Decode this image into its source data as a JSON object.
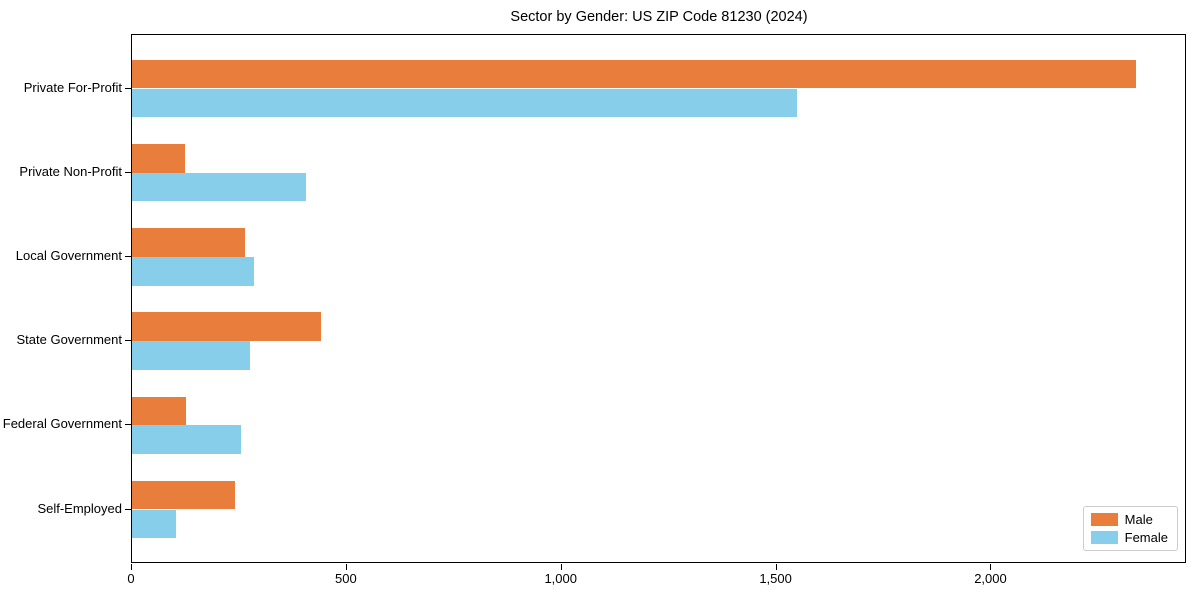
{
  "title": "Sector by Gender: US ZIP Code 81230 (2024)",
  "colors": {
    "male": "#e87d3c",
    "female": "#87ceeb",
    "axis": "#000000",
    "legend_border": "#cccccc",
    "background": "#ffffff"
  },
  "chart_data": {
    "type": "bar",
    "orientation": "horizontal",
    "title": "Sector by Gender: US ZIP Code 81230 (2024)",
    "xlabel": "",
    "ylabel": "",
    "categories": [
      "Private For-Profit",
      "Private Non-Profit",
      "Local Government",
      "State Government",
      "Federal Government",
      "Self-Employed"
    ],
    "series": [
      {
        "name": "Male",
        "color": "#e87d3c",
        "values": [
          2340,
          123,
          264,
          440,
          126,
          240
        ]
      },
      {
        "name": "Female",
        "color": "#87ceeb",
        "values": [
          1551,
          405,
          285,
          274,
          253,
          103
        ]
      }
    ],
    "xlim": [
      0,
      2455
    ],
    "xticks": [
      0,
      500,
      1000,
      1500,
      2000
    ],
    "xtick_labels": [
      "0",
      "500",
      "1,000",
      "1,500",
      "2,000"
    ],
    "grid": false,
    "legend_position": "lower-right"
  }
}
